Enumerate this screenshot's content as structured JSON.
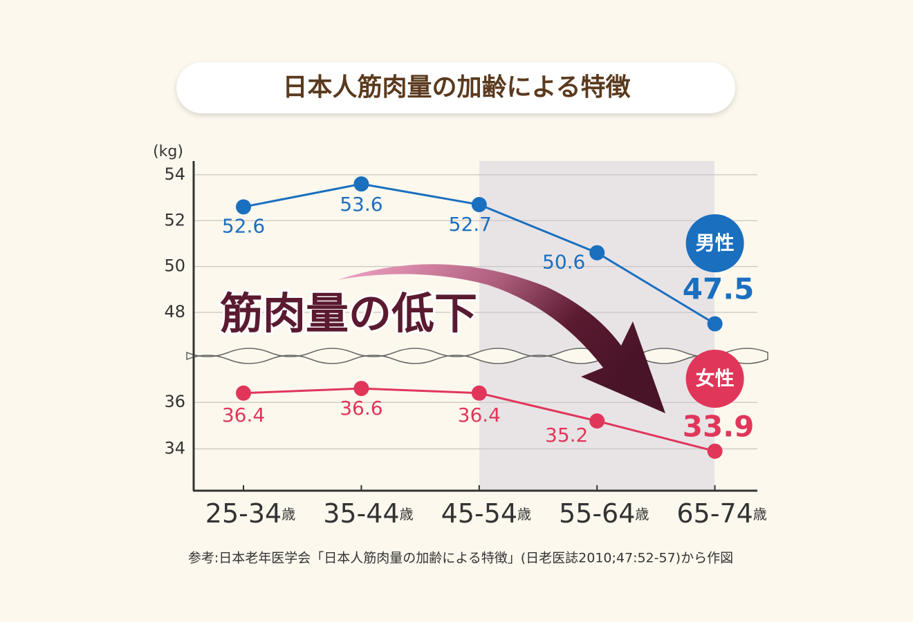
{
  "chart_data": {
    "type": "line",
    "title": "日本人筋肉量の加齢による特徴",
    "y_label": "(kg)",
    "annotation": "筋肉量の低下",
    "source": "参考:日本老年医学会「日本人筋肉量の加齢による特徴」(日老医誌2010;47:52-57)から作図",
    "categories": [
      "25-34",
      "35-44",
      "45-54",
      "55-64",
      "65-74"
    ],
    "category_suffix": "歳",
    "y_segments": [
      {
        "ylim": [
          46.1,
          54.6
        ],
        "yticks": [
          48,
          50,
          52,
          54
        ]
      },
      {
        "ylim": [
          32.2,
          38.0
        ],
        "yticks": [
          34,
          36
        ]
      }
    ],
    "grid": true,
    "series": [
      {
        "name": "男性",
        "color": "#1a6fbf",
        "values": [
          52.6,
          53.6,
          52.7,
          50.6,
          47.5
        ]
      },
      {
        "name": "女性",
        "color": "#e0365a",
        "values": [
          36.4,
          36.6,
          36.4,
          35.2,
          33.9
        ]
      }
    ]
  }
}
